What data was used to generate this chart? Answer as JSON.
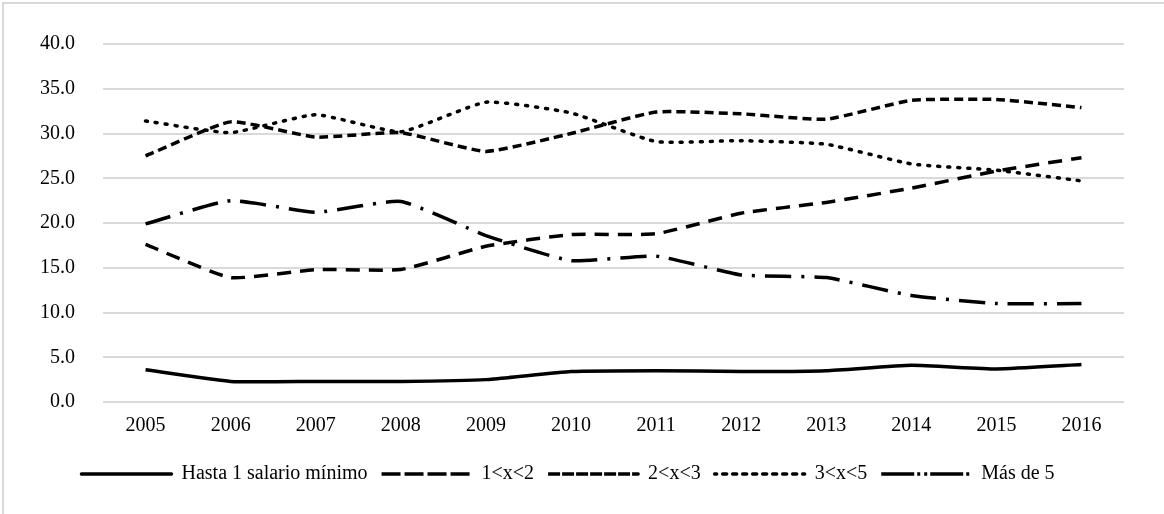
{
  "chart_data": {
    "type": "line",
    "categories": [
      "2005",
      "2006",
      "2007",
      "2008",
      "2009",
      "2010",
      "2011",
      "2012",
      "2013",
      "2014",
      "2015",
      "2016"
    ],
    "series": [
      {
        "name": "Hasta 1 salario mínimo",
        "color": "#000000",
        "line_style": "solid",
        "values": [
          3.6,
          2.3,
          2.3,
          2.3,
          2.5,
          3.4,
          3.5,
          3.4,
          3.5,
          4.1,
          3.7,
          4.2
        ]
      },
      {
        "name": "1<x<2",
        "color": "#000000",
        "line_style": "dashed",
        "values": [
          17.6,
          13.9,
          14.8,
          14.8,
          17.4,
          18.7,
          18.8,
          21.1,
          22.3,
          23.9,
          25.8,
          27.3
        ]
      },
      {
        "name": "2<x<3",
        "color": "#000000",
        "line_style": "dashed",
        "values": [
          27.5,
          31.3,
          29.6,
          30.1,
          28.0,
          30.0,
          32.4,
          32.2,
          31.6,
          33.7,
          33.8,
          32.9
        ]
      },
      {
        "name": "3<x<5",
        "color": "#000000",
        "line_style": "dotted",
        "values": [
          31.4,
          30.1,
          32.1,
          30.2,
          33.5,
          32.3,
          29.1,
          29.2,
          28.8,
          26.6,
          25.9,
          24.7
        ]
      },
      {
        "name": "Más de 5",
        "color": "#000000",
        "line_style": "dashed",
        "values": [
          19.9,
          22.5,
          21.2,
          22.4,
          18.6,
          15.8,
          16.3,
          14.2,
          13.9,
          11.9,
          11.0,
          11.0
        ]
      }
    ],
    "ylim": [
      0,
      40
    ],
    "yticks": [
      {
        "value": 0,
        "label": "0.0"
      },
      {
        "value": 5,
        "label": "5.0"
      },
      {
        "value": 10,
        "label": "10.0"
      },
      {
        "value": 15,
        "label": "15.0"
      },
      {
        "value": 20,
        "label": "20.0"
      },
      {
        "value": 25,
        "label": "25.0"
      },
      {
        "value": 30,
        "label": "30.0"
      },
      {
        "value": 35,
        "label": "35.0"
      },
      {
        "value": 40,
        "label": "40.0"
      }
    ],
    "grid": "y",
    "legend": "bottom",
    "marker": "none"
  }
}
